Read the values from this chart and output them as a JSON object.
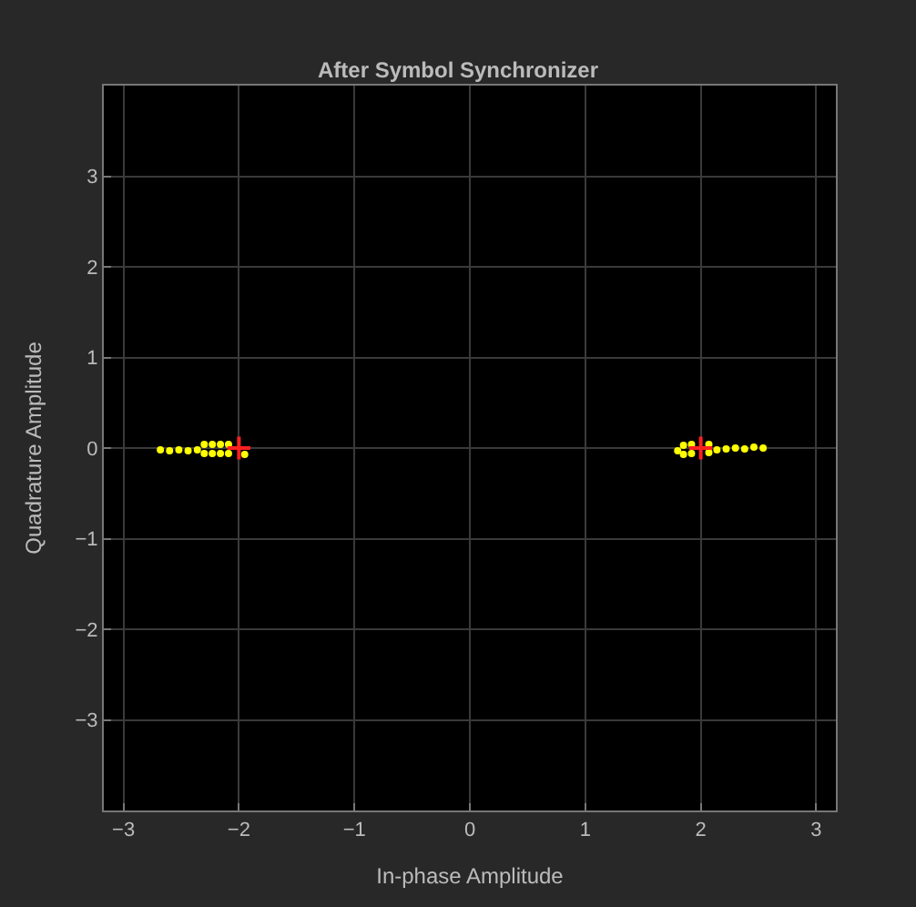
{
  "chart_data": {
    "type": "scatter",
    "title": "After Symbol Synchronizer",
    "xlabel": "In-phase Amplitude",
    "ylabel": "Quadrature Amplitude",
    "xlim": [
      -3.17,
      3.17
    ],
    "ylim": [
      -4,
      4
    ],
    "xticks": [
      -3,
      -2,
      -1,
      0,
      1,
      2,
      3
    ],
    "yticks": [
      -3,
      -2,
      -1,
      0,
      1,
      2,
      3
    ],
    "grid": true,
    "series": [
      {
        "color": "#ffff00",
        "marker": "circle",
        "x": [
          -2.68,
          -2.6,
          -2.52,
          -2.44,
          -2.36,
          -2.3,
          -2.3,
          -2.23,
          -2.23,
          -2.16,
          -2.16,
          -2.09,
          -2.09,
          -1.95,
          1.8,
          1.85,
          1.85,
          1.92,
          1.92,
          2.07,
          2.07,
          2.14,
          2.22,
          2.3,
          2.38,
          2.46,
          2.54
        ],
        "values": [
          -0.02,
          -0.03,
          -0.02,
          -0.03,
          -0.02,
          0.04,
          -0.06,
          0.04,
          -0.06,
          0.04,
          -0.06,
          0.04,
          -0.06,
          -0.07,
          -0.03,
          0.03,
          -0.07,
          0.04,
          -0.06,
          0.04,
          -0.05,
          -0.02,
          -0.01,
          0.0,
          -0.01,
          0.01,
          0.0
        ]
      },
      {
        "color": "#ff2020",
        "marker": "cross",
        "x": [
          -2.0,
          2.0
        ],
        "values": [
          0.0,
          0.0
        ]
      }
    ]
  }
}
